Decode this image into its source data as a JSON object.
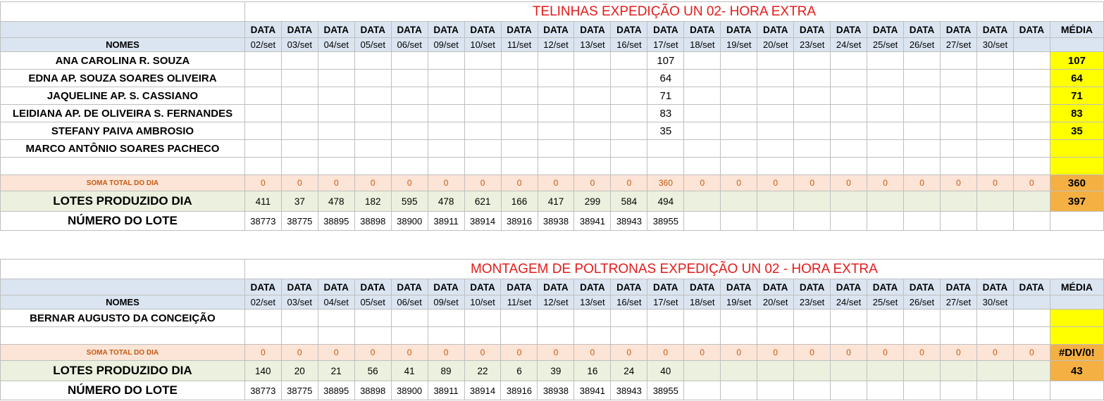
{
  "sections": [
    {
      "title": "TELINHAS EXPEDIÇÃO UN 02- HORA EXTRA",
      "header_label": "DATA",
      "avg_header": "MÉDIA",
      "names_header": "NOMES",
      "dates": [
        "02/set",
        "03/set",
        "04/set",
        "05/set",
        "06/set",
        "09/set",
        "10/set",
        "11/set",
        "12/set",
        "13/set",
        "16/set",
        "17/set",
        "18/set",
        "19/set",
        "20/set",
        "23/set",
        "24/set",
        "25/set",
        "26/set",
        "27/set",
        "30/set",
        ""
      ],
      "employees": [
        {
          "name": "ANA CAROLINA R. SOUZA",
          "values": [
            "",
            "",
            "",
            "",
            "",
            "",
            "",
            "",
            "",
            "",
            "",
            "107",
            "",
            "",
            "",
            "",
            "",
            "",
            "",
            "",
            "",
            ""
          ],
          "avg": "107"
        },
        {
          "name": "EDNA AP. SOUZA SOARES OLIVEIRA",
          "values": [
            "",
            "",
            "",
            "",
            "",
            "",
            "",
            "",
            "",
            "",
            "",
            "64",
            "",
            "",
            "",
            "",
            "",
            "",
            "",
            "",
            "",
            ""
          ],
          "avg": "64"
        },
        {
          "name": "JAQUELINE AP.  S. CASSIANO",
          "values": [
            "",
            "",
            "",
            "",
            "",
            "",
            "",
            "",
            "",
            "",
            "",
            "71",
            "",
            "",
            "",
            "",
            "",
            "",
            "",
            "",
            "",
            ""
          ],
          "avg": "71"
        },
        {
          "name": "LEIDIANA AP. DE OLIVEIRA S. FERNANDES",
          "values": [
            "",
            "",
            "",
            "",
            "",
            "",
            "",
            "",
            "",
            "",
            "",
            "83",
            "",
            "",
            "",
            "",
            "",
            "",
            "",
            "",
            "",
            ""
          ],
          "avg": "83"
        },
        {
          "name": "STEFANY PAIVA AMBROSIO",
          "values": [
            "",
            "",
            "",
            "",
            "",
            "",
            "",
            "",
            "",
            "",
            "",
            "35",
            "",
            "",
            "",
            "",
            "",
            "",
            "",
            "",
            "",
            ""
          ],
          "avg": "35"
        },
        {
          "name": "MARCO ANTÔNIO SOARES PACHECO",
          "values": [
            "",
            "",
            "",
            "",
            "",
            "",
            "",
            "",
            "",
            "",
            "",
            "",
            "",
            "",
            "",
            "",
            "",
            "",
            "",
            "",
            "",
            ""
          ],
          "avg": ""
        }
      ],
      "blank_rows": 1,
      "soma": {
        "label": "SOMA TOTAL DO DIA",
        "values": [
          "0",
          "0",
          "0",
          "0",
          "0",
          "0",
          "0",
          "0",
          "0",
          "0",
          "0",
          "360",
          "0",
          "0",
          "0",
          "0",
          "0",
          "0",
          "0",
          "0",
          "0",
          "0"
        ],
        "avg": "360"
      },
      "lotes": {
        "label": "LOTES PRODUZIDO DIA",
        "values": [
          "411",
          "37",
          "478",
          "182",
          "595",
          "478",
          "621",
          "166",
          "417",
          "299",
          "584",
          "494",
          "",
          "",
          "",
          "",
          "",
          "",
          "",
          "",
          "",
          ""
        ],
        "avg": "397"
      },
      "numero": {
        "label": "NÚMERO DO LOTE",
        "values": [
          "38773",
          "38775",
          "38895",
          "38898",
          "38900",
          "38911",
          "38914",
          "38916",
          "38938",
          "38941",
          "38943",
          "38955",
          "",
          "",
          "",
          "",
          "",
          "",
          "",
          "",
          "",
          ""
        ],
        "avg": ""
      }
    },
    {
      "title": "MONTAGEM DE POLTRONAS EXPEDIÇÃO UN 02 - HORA EXTRA",
      "header_label": "DATA",
      "avg_header": "MÉDIA",
      "names_header": "NOMES",
      "dates": [
        "02/set",
        "03/set",
        "04/set",
        "05/set",
        "06/set",
        "09/set",
        "10/set",
        "11/set",
        "12/set",
        "13/set",
        "16/set",
        "17/set",
        "18/set",
        "19/set",
        "20/set",
        "23/set",
        "24/set",
        "25/set",
        "26/set",
        "27/set",
        "30/set",
        ""
      ],
      "employees": [
        {
          "name": "BERNAR AUGUSTO DA CONCEIÇÃO",
          "values": [
            "",
            "",
            "",
            "",
            "",
            "",
            "",
            "",
            "",
            "",
            "",
            "",
            "",
            "",
            "",
            "",
            "",
            "",
            "",
            "",
            "",
            ""
          ],
          "avg": ""
        }
      ],
      "blank_rows": 1,
      "soma": {
        "label": "SOMA TOTAL DO DIA",
        "values": [
          "0",
          "0",
          "0",
          "0",
          "0",
          "0",
          "0",
          "0",
          "0",
          "0",
          "0",
          "0",
          "0",
          "0",
          "0",
          "0",
          "0",
          "0",
          "0",
          "0",
          "0",
          "0"
        ],
        "avg": "#DIV/0!"
      },
      "lotes": {
        "label": "LOTES PRODUZIDO DIA",
        "values": [
          "140",
          "20",
          "21",
          "56",
          "41",
          "89",
          "22",
          "6",
          "39",
          "16",
          "24",
          "40",
          "",
          "",
          "",
          "",
          "",
          "",
          "",
          "",
          "",
          ""
        ],
        "avg": "43"
      },
      "numero": {
        "label": "NÚMERO DO LOTE",
        "values": [
          "38773",
          "38775",
          "38895",
          "38898",
          "38900",
          "38911",
          "38914",
          "38916",
          "38938",
          "38941",
          "38943",
          "38955",
          "",
          "",
          "",
          "",
          "",
          "",
          "",
          "",
          "",
          ""
        ],
        "avg": ""
      }
    }
  ]
}
